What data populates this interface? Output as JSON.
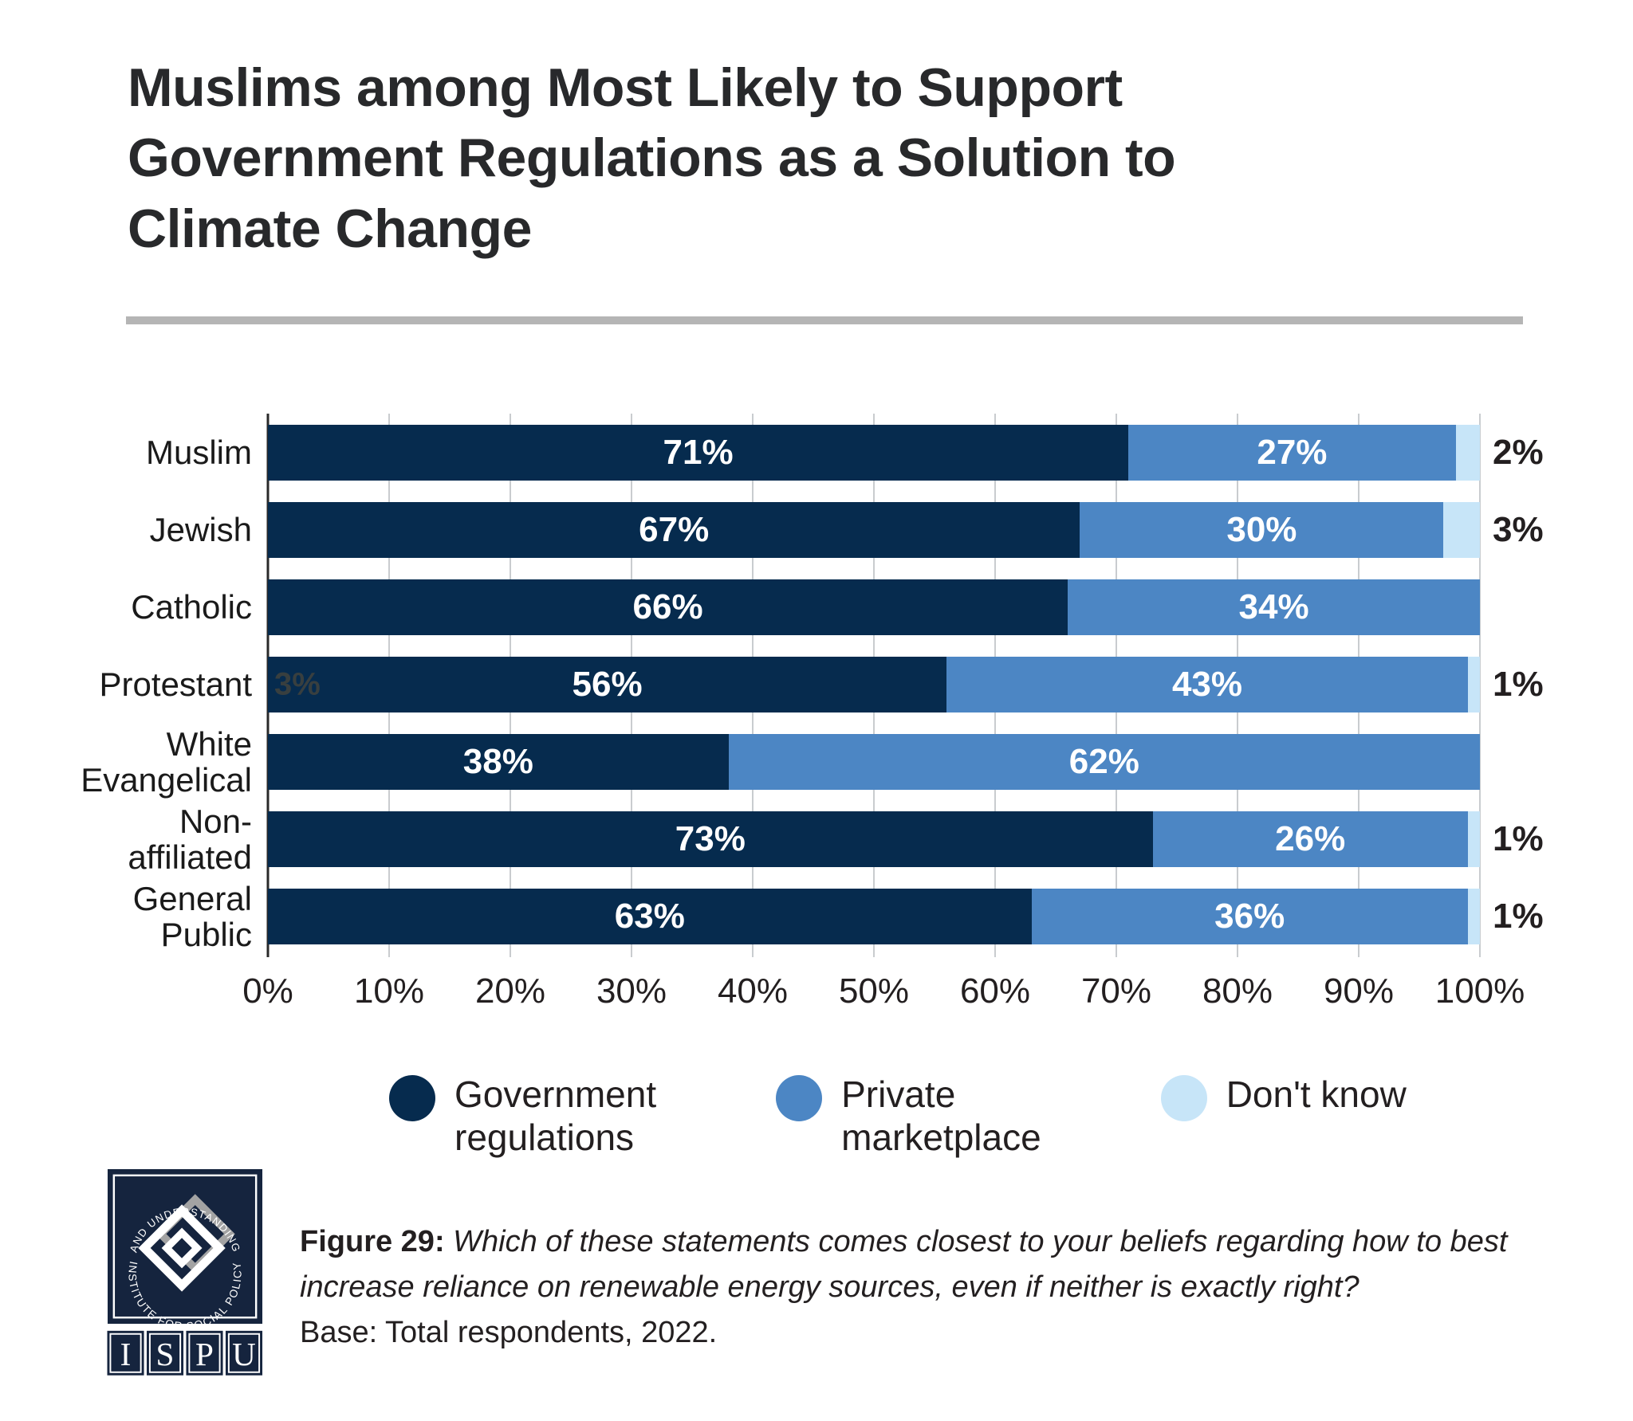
{
  "title_lines": [
    "Muslims among Most Likely to Support",
    "Government Regulations as a Solution to",
    "Climate Change"
  ],
  "chart_data": {
    "type": "bar",
    "orientation": "horizontal",
    "stacked": true,
    "categories": [
      "Muslim",
      "Jewish",
      "Catholic",
      "Protestant",
      "White Evangelical",
      "Non-affiliated",
      "General Public"
    ],
    "series": [
      {
        "name": "Government regulations",
        "color": "#062b4e",
        "values": [
          71,
          67,
          66,
          56,
          38,
          73,
          63
        ]
      },
      {
        "name": "Private marketplace",
        "color": "#4c86c4",
        "values": [
          27,
          30,
          34,
          43,
          62,
          26,
          36
        ]
      },
      {
        "name": "Don't know",
        "color": "#c7e5f8",
        "values": [
          2,
          3,
          0,
          1,
          0,
          1,
          1
        ]
      }
    ],
    "x_ticks": [
      "0%",
      "10%",
      "20%",
      "30%",
      "40%",
      "50%",
      "60%",
      "70%",
      "80%",
      "90%",
      "100%"
    ],
    "xlim": [
      0,
      100
    ],
    "grid": true,
    "value_suffix": "%",
    "inside_label_series": [
      "Government regulations",
      "Private marketplace"
    ],
    "outside_label_series": "Don't know",
    "legend_position": "bottom",
    "artifact_label": {
      "category_index": 3,
      "text": "3%"
    }
  },
  "legend": {
    "items": [
      {
        "lines": [
          "Government",
          "regulations"
        ],
        "color": "#062b4e"
      },
      {
        "lines": [
          "Private",
          "marketplace"
        ],
        "color": "#4c86c4"
      },
      {
        "lines": [
          "Don't know"
        ],
        "color": "#c7e5f8"
      }
    ]
  },
  "footer": {
    "figure_label": "Figure 29:",
    "question": "Which of these statements comes closest to your beliefs regarding how to best increase reliance on renewable energy sources, even if neither is exactly right?",
    "base": "Base: Total respondents, 2022."
  },
  "logo": {
    "arc_top": "INSTITUTE FOR SOCIAL POLICY",
    "arc_bottom": "AND UNDERSTANDING",
    "letters": [
      "I",
      "S",
      "P",
      "U"
    ],
    "navy": "#15243e"
  }
}
